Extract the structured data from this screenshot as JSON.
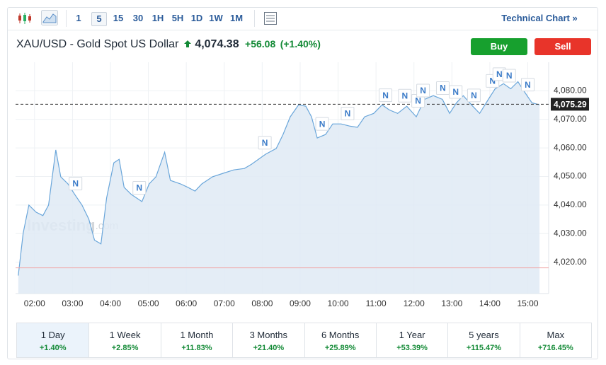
{
  "toolbar": {
    "intervals": [
      "1",
      "5",
      "15",
      "30",
      "1H",
      "5H",
      "1D",
      "1W",
      "1M"
    ],
    "link": "Technical Chart »"
  },
  "header": {
    "name": "XAU/USD - Gold Spot US Dollar",
    "price": "4,074.38",
    "change": "+56.08",
    "change_pct": "(+1.40%)",
    "buy": "Buy",
    "sell": "Sell"
  },
  "watermark": {
    "brand": "Investing",
    "suffix": ".com"
  },
  "chart_data": {
    "type": "area",
    "color": "#6aa6da",
    "fill": "#dfeaf5",
    "x": [
      1.57,
      1.7,
      1.85,
      2.04,
      2.22,
      2.37,
      2.56,
      2.69,
      2.88,
      3.06,
      3.25,
      3.43,
      3.58,
      3.75,
      3.9,
      4.09,
      4.23,
      4.36,
      4.55,
      4.83,
      5.02,
      5.2,
      5.43,
      5.58,
      5.85,
      6.04,
      6.23,
      6.41,
      6.69,
      6.97,
      7.25,
      7.53,
      7.72,
      7.9,
      8.09,
      8.37,
      8.55,
      8.74,
      8.96,
      9.15,
      9.3,
      9.45,
      9.67,
      9.86,
      10.08,
      10.32,
      10.51,
      10.7,
      10.94,
      11.16,
      11.35,
      11.57,
      11.81,
      12.06,
      12.28,
      12.51,
      12.75,
      12.94,
      13.12,
      13.3,
      13.55,
      13.73,
      13.96,
      14.14,
      14.36,
      14.55,
      14.74,
      14.92,
      15.11,
      15.31
    ],
    "values": [
      4015.3,
      4030.1,
      4040.0,
      4037.5,
      4036.3,
      4040.0,
      4059.3,
      4049.9,
      4047.4,
      4043.7,
      4040.0,
      4035.1,
      4027.7,
      4026.4,
      4042.5,
      4054.8,
      4056.0,
      4046.2,
      4043.7,
      4041.2,
      4047.4,
      4049.9,
      4058.5,
      4048.6,
      4047.4,
      4046.2,
      4044.9,
      4047.4,
      4049.9,
      4051.1,
      4052.3,
      4052.8,
      4054.3,
      4056.0,
      4057.8,
      4059.8,
      4064.7,
      4070.9,
      4075.1,
      4074.6,
      4070.9,
      4063.5,
      4064.7,
      4068.4,
      4068.4,
      4067.6,
      4067.2,
      4070.9,
      4072.1,
      4075.1,
      4073.3,
      4072.1,
      4074.6,
      4070.9,
      4077.0,
      4078.3,
      4077.0,
      4072.1,
      4075.8,
      4078.3,
      4074.6,
      4072.1,
      4077.0,
      4080.7,
      4082.5,
      4080.7,
      4083.2,
      4079.5,
      4075.8,
      4075.1
    ],
    "xlim": [
      1.5,
      15.55
    ],
    "xticks": [
      {
        "value": 2,
        "label": "02:00"
      },
      {
        "value": 3,
        "label": "03:00"
      },
      {
        "value": 4,
        "label": "04:00"
      },
      {
        "value": 5,
        "label": "05:00"
      },
      {
        "value": 6,
        "label": "06:00"
      },
      {
        "value": 7,
        "label": "07:00"
      },
      {
        "value": 8,
        "label": "08:00"
      },
      {
        "value": 9,
        "label": "09:00"
      },
      {
        "value": 10,
        "label": "10:00"
      },
      {
        "value": 11,
        "label": "11:00"
      },
      {
        "value": 12,
        "label": "12:00"
      },
      {
        "value": 13,
        "label": "13:00"
      },
      {
        "value": 14,
        "label": "14:00"
      },
      {
        "value": 15,
        "label": "15:00"
      }
    ],
    "ylim": [
      4009,
      4090
    ],
    "yticks": [
      {
        "value": 4020,
        "label": "4,020.00"
      },
      {
        "value": 4030,
        "label": "4,030.00"
      },
      {
        "value": 4040,
        "label": "4,040.00"
      },
      {
        "value": 4050,
        "label": "4,050.00"
      },
      {
        "value": 4060,
        "label": "4,060.00"
      },
      {
        "value": 4070,
        "label": "4,070.00"
      },
      {
        "value": 4080,
        "label": "4,080.00"
      }
    ],
    "grid": true,
    "previous_close": 4018.0,
    "current_price": {
      "value": 4075.29,
      "label": "4,075.29"
    },
    "news_markers": [
      {
        "x": 3.08,
        "label": "N"
      },
      {
        "x": 4.76,
        "label": "N"
      },
      {
        "x": 8.07,
        "label": "N"
      },
      {
        "x": 9.58,
        "label": "N"
      },
      {
        "x": 10.25,
        "label": "N"
      },
      {
        "x": 11.25,
        "label": "N"
      },
      {
        "x": 11.76,
        "label": "N"
      },
      {
        "x": 12.11,
        "label": "N"
      },
      {
        "x": 12.24,
        "label": "N"
      },
      {
        "x": 12.76,
        "label": "N"
      },
      {
        "x": 13.1,
        "label": "N"
      },
      {
        "x": 13.58,
        "label": "N"
      },
      {
        "x": 14.07,
        "label": "N"
      },
      {
        "x": 14.25,
        "label": "N"
      },
      {
        "x": 14.51,
        "label": "N"
      },
      {
        "x": 15.0,
        "label": "N"
      }
    ]
  },
  "periods": [
    {
      "name": "1 Day",
      "change": "+1.40%"
    },
    {
      "name": "1 Week",
      "change": "+2.85%"
    },
    {
      "name": "1 Month",
      "change": "+11.83%"
    },
    {
      "name": "3 Months",
      "change": "+21.40%"
    },
    {
      "name": "6 Months",
      "change": "+25.89%"
    },
    {
      "name": "1 Year",
      "change": "+53.39%"
    },
    {
      "name": "5 years",
      "change": "+115.47%"
    },
    {
      "name": "Max",
      "change": "+716.45%"
    }
  ]
}
